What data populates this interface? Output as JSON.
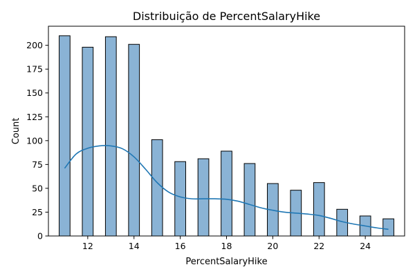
{
  "chart_data": {
    "type": "bar",
    "title": "Distribuição de PercentSalaryHike",
    "xlabel": "PercentSalaryHike",
    "ylabel": "Count",
    "xlim": [
      10.3,
      25.7
    ],
    "ylim": [
      0,
      220
    ],
    "x_ticks": [
      12,
      14,
      16,
      18,
      20,
      22,
      24
    ],
    "y_ticks": [
      0,
      25,
      50,
      75,
      100,
      125,
      150,
      175,
      200
    ],
    "bin_width": 0.47,
    "x": [
      11,
      12,
      13,
      14,
      15,
      16,
      17,
      18,
      19,
      20,
      21,
      22,
      23,
      24,
      25
    ],
    "values": [
      210,
      198,
      209,
      201,
      101,
      78,
      81,
      89,
      76,
      55,
      48,
      56,
      28,
      21,
      18
    ],
    "kde": {
      "x": [
        11,
        11.5,
        12,
        12.5,
        13,
        13.5,
        14,
        14.5,
        15,
        15.5,
        16,
        16.5,
        17,
        17.5,
        18,
        18.5,
        19,
        19.5,
        20,
        20.5,
        21,
        21.5,
        22,
        22.5,
        23,
        23.5,
        24,
        24.5,
        25
      ],
      "y": [
        71,
        86,
        92,
        94.5,
        94.5,
        91.5,
        83,
        70,
        56,
        46,
        41,
        39,
        39,
        39,
        38.5,
        36.5,
        33,
        29.5,
        27,
        25,
        24,
        23,
        21.5,
        18.5,
        15,
        12.5,
        10.5,
        8.5,
        7
      ]
    },
    "grid": false,
    "colors": {
      "bar_fill": "#8ab3d5",
      "bar_edge": "#000000",
      "kde_line": "#1f77b4"
    }
  }
}
